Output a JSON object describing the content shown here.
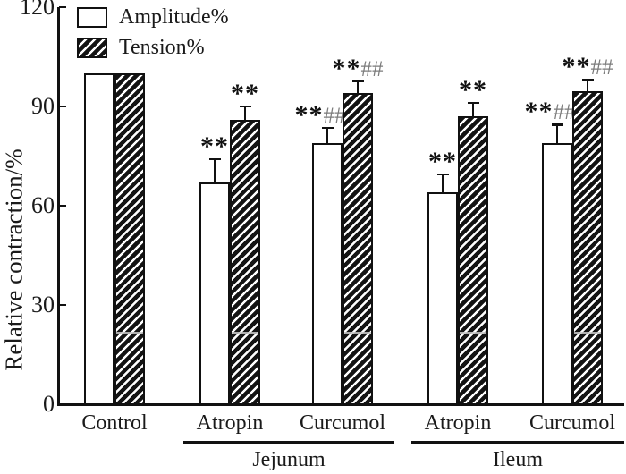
{
  "chart_data": {
    "type": "bar",
    "title": "",
    "ylabel": "Relative contraction/%",
    "ylim": [
      0,
      120
    ],
    "yticks": [
      0,
      30,
      60,
      90,
      120
    ],
    "categories": [
      "Control",
      "Atropin",
      "Curcumol",
      "Atropin",
      "Curcumol"
    ],
    "sections": [
      {
        "label": "Jejunum",
        "from": 1,
        "to": 2
      },
      {
        "label": "Ileum",
        "from": 3,
        "to": 4
      }
    ],
    "series": [
      {
        "name": "Amplitude%",
        "pattern": "white",
        "values": [
          100,
          67,
          79,
          64,
          79
        ],
        "errors": [
          0,
          7,
          4.5,
          5.5,
          5.5
        ],
        "sig": [
          "",
          "**",
          "**##",
          "**",
          "**##"
        ]
      },
      {
        "name": "Tension%",
        "pattern": "hatch",
        "values": [
          100,
          86,
          94,
          87,
          94.5
        ],
        "errors": [
          0,
          4,
          3.5,
          4,
          3.5
        ],
        "sig": [
          "",
          "**",
          "**##",
          "**",
          "**##"
        ]
      }
    ],
    "faint_line_y": 22,
    "legend_position": "top-left",
    "grid": "off",
    "colors": {
      "bar_outline": "#111111",
      "hatch_fill": "#141414",
      "sig_star": "#111111",
      "sig_hash": "#7c7c7c",
      "text": "#1a1a1a"
    }
  }
}
